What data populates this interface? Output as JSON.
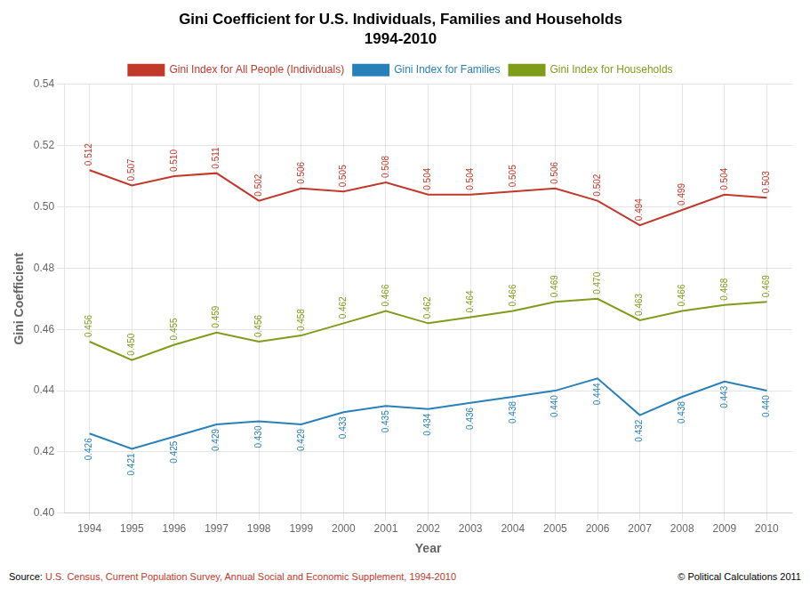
{
  "chart_data": {
    "type": "line",
    "title": "Gini Coefficient for U.S. Individuals, Families and Households",
    "subtitle": "1994-2010",
    "x_label": "Year",
    "y_label": "Gini Coefficient",
    "x": [
      1994,
      1995,
      1996,
      1997,
      1998,
      1999,
      2000,
      2001,
      2002,
      2003,
      2004,
      2005,
      2006,
      2007,
      2008,
      2009,
      2010
    ],
    "series": [
      {
        "name": "Gini Index for All People (Individuals)",
        "color": "#c0392b",
        "values": [
          0.512,
          0.507,
          0.51,
          0.511,
          0.502,
          0.506,
          0.505,
          0.508,
          0.504,
          0.504,
          0.505,
          0.506,
          0.502,
          0.494,
          0.499,
          0.504,
          0.503
        ],
        "value_labels": [
          "0.512",
          "0.507",
          "0.510",
          "0.511",
          "0.502",
          "0.506",
          "0.505",
          "0.508",
          "0.504",
          "0.504",
          "0.505",
          "0.506",
          "0.502",
          "0.494",
          "0.499",
          "0.504",
          "0.503"
        ]
      },
      {
        "name": "Gini Index for Families",
        "color": "#2980b9",
        "values": [
          0.426,
          0.421,
          0.425,
          0.429,
          0.43,
          0.429,
          0.433,
          0.435,
          0.434,
          0.436,
          0.438,
          0.44,
          0.444,
          0.432,
          0.438,
          0.443,
          0.44
        ],
        "value_labels": [
          "0.426",
          "0.421",
          "0.425",
          "0.429",
          "0.430",
          "0.429",
          "0.433",
          "0.435",
          "0.434",
          "0.436",
          "0.438",
          "0.440",
          "0.444",
          "0.432",
          "0.438",
          "0.443",
          "0.440"
        ]
      },
      {
        "name": "Gini Index for Households",
        "color": "#7f9c1a",
        "values": [
          0.456,
          0.45,
          0.455,
          0.459,
          0.456,
          0.458,
          0.462,
          0.466,
          0.462,
          0.464,
          0.466,
          0.469,
          0.47,
          0.463,
          0.466,
          0.468,
          0.469
        ],
        "value_labels": [
          "0.456",
          "0.450",
          "0.455",
          "0.459",
          "0.456",
          "0.458",
          "0.462",
          "0.466",
          "0.462",
          "0.464",
          "0.466",
          "0.469",
          "0.470",
          "0.463",
          "0.466",
          "0.468",
          "0.469"
        ]
      }
    ],
    "xlim": [
      1993.4,
      2010.6
    ],
    "xticks": [
      1994,
      1995,
      1996,
      1997,
      1998,
      1999,
      2000,
      2001,
      2002,
      2003,
      2004,
      2005,
      2006,
      2007,
      2008,
      2009,
      2010
    ],
    "ylim": [
      0.4,
      0.54
    ],
    "yticks": [
      {
        "value": 0.4,
        "label": "0.40"
      },
      0.42,
      0.44,
      0.46,
      0.48,
      {
        "value": 0.5,
        "label": "0.50"
      },
      0.52,
      0.54
    ],
    "grid": true,
    "legend": "top",
    "data_labels": true,
    "annotations": [
      {
        "text": "Source: ",
        "color": "#000000"
      },
      {
        "text": "U.S. Census, Current Population Survey, Annual Social and Economic Supplement, 1994-2010",
        "color": "#c0392b"
      },
      {
        "text": "© Political Calculations 2011",
        "color": "#000000"
      }
    ]
  }
}
